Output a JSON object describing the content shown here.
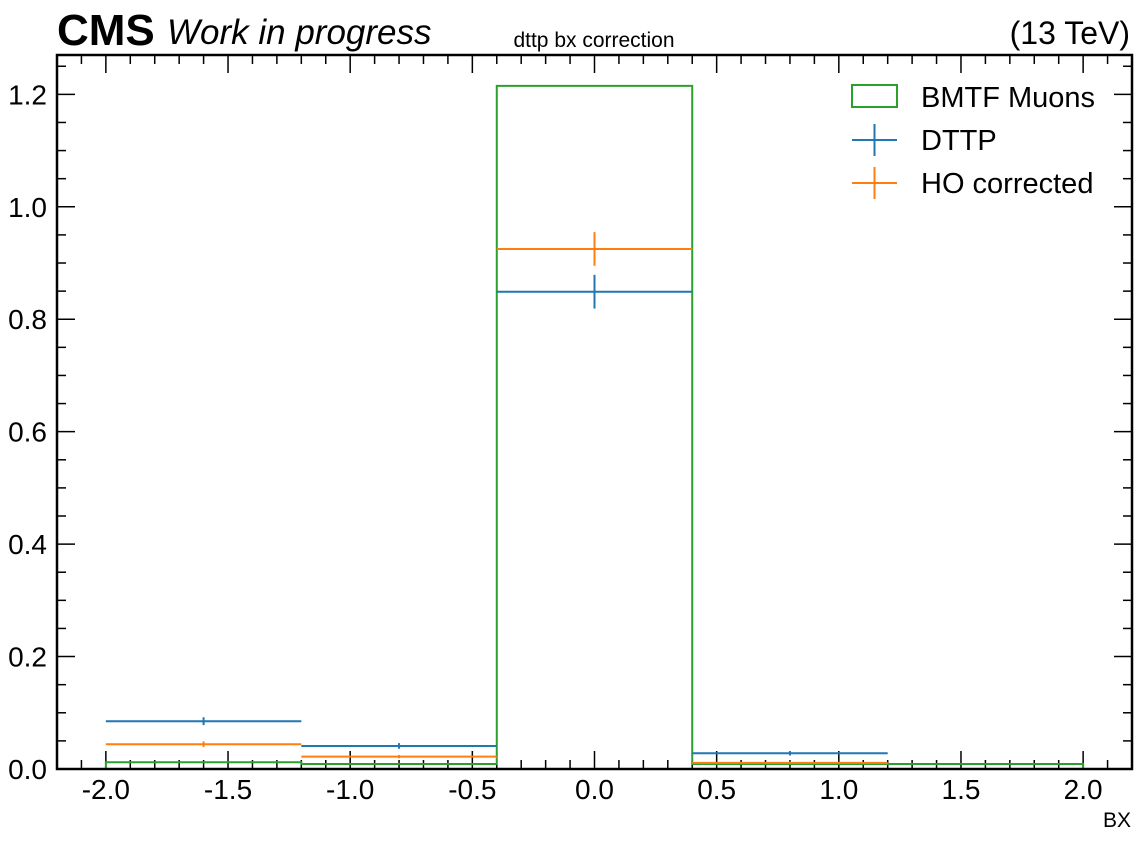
{
  "header": {
    "experiment": "CMS",
    "status": "Work in progress",
    "energy": "(13 TeV)"
  },
  "chart_data": {
    "type": "bar",
    "title": "dttp bx correction",
    "xlabel": "BX",
    "ylabel": "",
    "xlim": [
      -2.2,
      2.2
    ],
    "ylim": [
      0,
      1.27
    ],
    "x_ticks": [
      "-2.0",
      "-1.5",
      "-1.0",
      "-0.5",
      "0.0",
      "0.5",
      "1.0",
      "1.5",
      "2.0"
    ],
    "y_ticks": [
      "0.0",
      "0.2",
      "0.4",
      "0.6",
      "0.8",
      "1.0",
      "1.2"
    ],
    "bin_edges": [
      -2.0,
      -1.2,
      -0.4,
      0.4,
      1.2,
      2.0
    ],
    "legend_position": "top-right",
    "grid": false,
    "series": [
      {
        "name": "BMTF Muons",
        "style": "step",
        "color": "#2ca02c",
        "values": [
          0.012,
          0.009,
          1.215,
          0.009,
          0.009
        ]
      },
      {
        "name": "DTTP",
        "style": "errorbar",
        "color": "#1f77b4",
        "values": [
          0.085,
          0.041,
          0.849,
          0.028,
          0.0
        ],
        "errors": [
          0.007,
          0.005,
          0.03,
          0.004,
          0.0
        ]
      },
      {
        "name": "HO corrected",
        "style": "errorbar",
        "color": "#ff7f0e",
        "values": [
          0.044,
          0.022,
          0.925,
          0.011,
          0.0
        ],
        "errors": [
          0.005,
          0.003,
          0.03,
          0.002,
          0.0
        ]
      }
    ]
  }
}
